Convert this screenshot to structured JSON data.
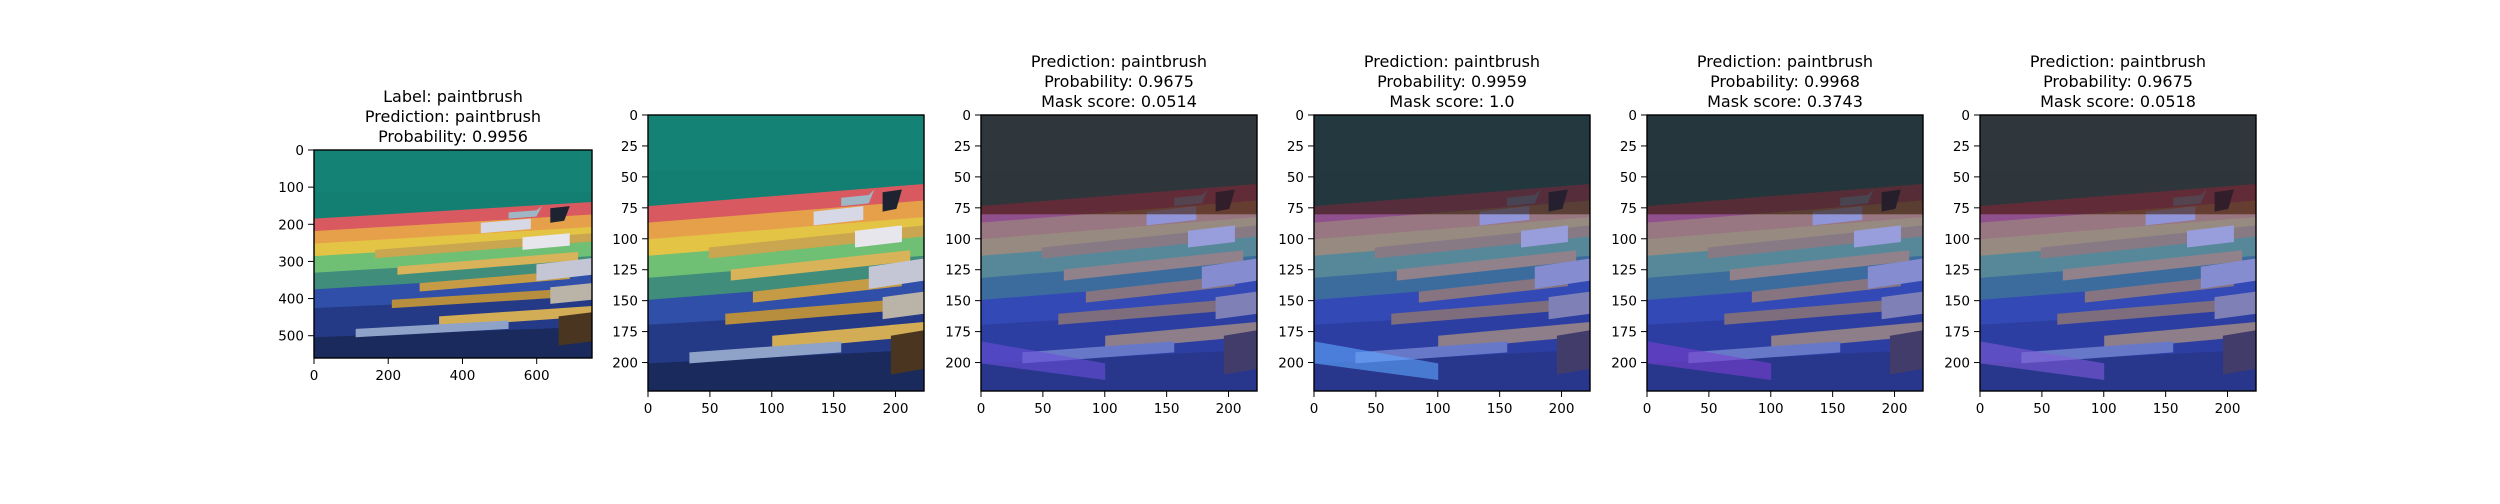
{
  "chart_data": [
    {
      "type": "image",
      "title_lines": [
        "Label: paintbrush",
        "Prediction: paintbrush",
        "Probability: 0.9956"
      ],
      "image_content": "paintbrush-photo",
      "xticks": [
        0,
        200,
        400,
        600
      ],
      "yticks": [
        0,
        100,
        200,
        300,
        400,
        500
      ],
      "xlim": [
        0,
        749
      ],
      "ylim": [
        0,
        560
      ],
      "grid": false
    },
    {
      "type": "image",
      "title_lines": [],
      "image_content": "paintbrush-photo",
      "xticks": [
        0,
        50,
        100,
        150,
        200
      ],
      "yticks": [
        0,
        25,
        50,
        75,
        100,
        125,
        150,
        175,
        200
      ],
      "xlim": [
        0,
        223
      ],
      "ylim": [
        0,
        223
      ],
      "grid": false
    },
    {
      "type": "image",
      "title_lines": [
        "Prediction: paintbrush",
        "Probability: 0.9675",
        "Mask score: 0.0514"
      ],
      "prediction": "paintbrush",
      "probability": 0.9675,
      "mask_score": 0.0514,
      "image_content": "paintbrush-photo-with-mask-overlay",
      "xticks": [
        0,
        50,
        100,
        150,
        200
      ],
      "yticks": [
        0,
        25,
        50,
        75,
        100,
        125,
        150,
        175,
        200
      ],
      "xlim": [
        0,
        223
      ],
      "ylim": [
        0,
        223
      ],
      "grid": false
    },
    {
      "type": "image",
      "title_lines": [
        "Prediction: paintbrush",
        "Probability: 0.9959",
        "Mask score: 1.0"
      ],
      "prediction": "paintbrush",
      "probability": 0.9959,
      "mask_score": 1.0,
      "image_content": "paintbrush-photo-with-mask-overlay",
      "xticks": [
        0,
        50,
        100,
        150,
        200
      ],
      "yticks": [
        0,
        25,
        50,
        75,
        100,
        125,
        150,
        175,
        200
      ],
      "xlim": [
        0,
        223
      ],
      "ylim": [
        0,
        223
      ],
      "grid": false
    },
    {
      "type": "image",
      "title_lines": [
        "Prediction: paintbrush",
        "Probability: 0.9968",
        "Mask score: 0.3743"
      ],
      "prediction": "paintbrush",
      "probability": 0.9968,
      "mask_score": 0.3743,
      "image_content": "paintbrush-photo-with-mask-overlay",
      "xticks": [
        0,
        50,
        100,
        150,
        200
      ],
      "yticks": [
        0,
        25,
        50,
        75,
        100,
        125,
        150,
        175,
        200
      ],
      "xlim": [
        0,
        223
      ],
      "ylim": [
        0,
        223
      ],
      "grid": false
    },
    {
      "type": "image",
      "title_lines": [
        "Prediction: paintbrush",
        "Probability: 0.9675",
        "Mask score: 0.0518"
      ],
      "prediction": "paintbrush",
      "probability": 0.9675,
      "mask_score": 0.0518,
      "image_content": "paintbrush-photo-with-mask-overlay",
      "xticks": [
        0,
        50,
        100,
        150,
        200
      ],
      "yticks": [
        0,
        25,
        50,
        75,
        100,
        125,
        150,
        175,
        200
      ],
      "xlim": [
        0,
        223
      ],
      "ylim": [
        0,
        223
      ],
      "grid": false
    }
  ]
}
